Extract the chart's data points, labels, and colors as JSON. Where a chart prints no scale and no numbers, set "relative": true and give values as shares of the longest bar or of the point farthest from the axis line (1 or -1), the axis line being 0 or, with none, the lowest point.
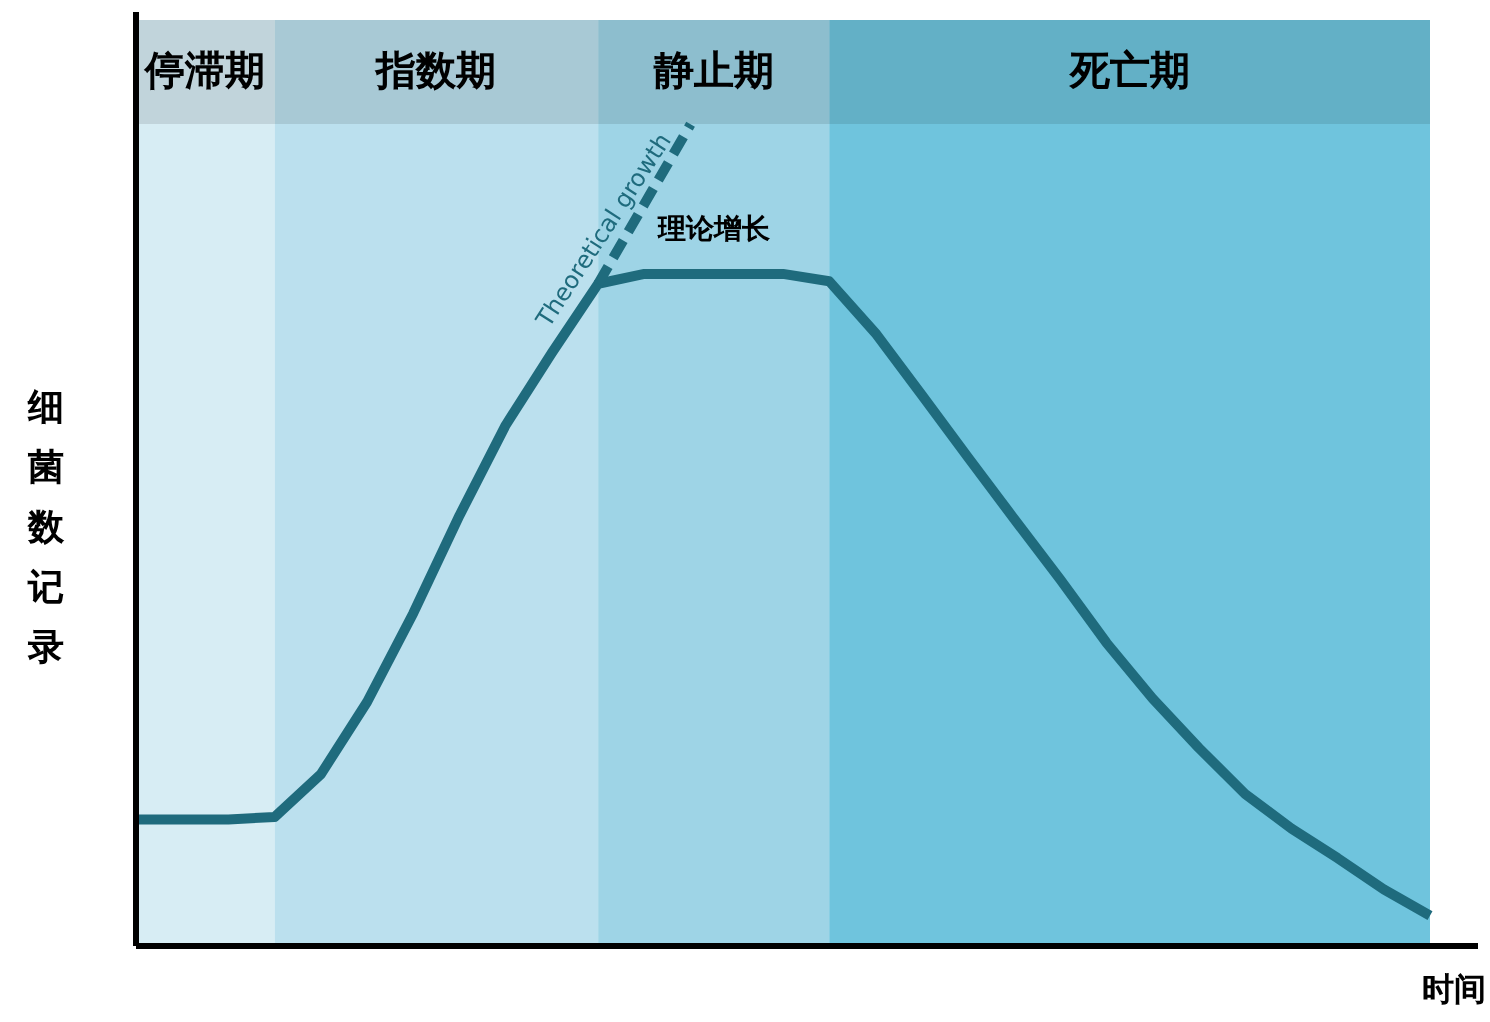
{
  "chart_data": {
    "type": "line",
    "relative": true,
    "xlabel": "时间",
    "ylabel": "细菌数记录",
    "categories": [
      null,
      null,
      null,
      null,
      null,
      null,
      null,
      null,
      null,
      null,
      null,
      null,
      null,
      null,
      null,
      null,
      null,
      null,
      null,
      null,
      null,
      null,
      null,
      null,
      null,
      null,
      null,
      null,
      null
    ],
    "series": [
      {
        "color": "#1f6b7d",
        "line_style": "solid",
        "values": [
          0.154,
          0.154,
          0.154,
          0.157,
          0.209,
          0.297,
          0.405,
          0.524,
          0.634,
          0.722,
          0.806,
          0.818,
          0.818,
          0.818,
          0.818,
          0.809,
          0.746,
          0.671,
          0.595,
          0.52,
          0.446,
          0.369,
          0.301,
          0.241,
          0.185,
          0.143,
          0.107,
          0.069,
          0.037
        ]
      },
      {
        "name": "Theoretical growth",
        "color": "#1f6b7d",
        "line_style": "dashed",
        "values": [
          null,
          null,
          null,
          null,
          null,
          null,
          null,
          null,
          null,
          null,
          0.806,
          0.903,
          1,
          null,
          null,
          null,
          null,
          null,
          null,
          null,
          null,
          null,
          null,
          null,
          null,
          null,
          null,
          null,
          null
        ]
      }
    ],
    "annotations": [
      "停滞期",
      "指数期",
      "静止期",
      "死亡期",
      "理论增长"
    ]
  }
}
